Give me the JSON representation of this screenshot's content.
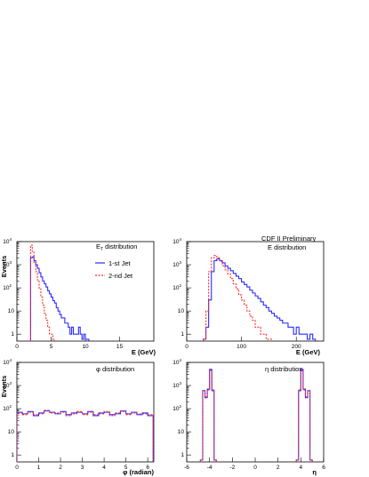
{
  "chart_data": [
    {
      "id": "et",
      "type": "line",
      "title": "E_T distribution",
      "title_main": "E",
      "title_sub": "T",
      "title_rest": " distribution",
      "xlabel": "E  (GeV)",
      "ylabel": "Events",
      "xlim": [
        0,
        20
      ],
      "ylim_log10": [
        -0.3,
        4
      ],
      "x_ticks": [
        0,
        5,
        10,
        15
      ],
      "log_y": true,
      "series": [
        {
          "name": "1-st Jet",
          "color": "#2a2aff",
          "dashed": false,
          "x": [
            2,
            2.25,
            2.5,
            2.75,
            3,
            3.25,
            3.5,
            3.75,
            4,
            4.25,
            4.5,
            4.75,
            5,
            5.25,
            5.5,
            5.75,
            6,
            6.25,
            6.5,
            6.75,
            7,
            7.25,
            7.5,
            7.75,
            8,
            8.25,
            8.5,
            8.75,
            9,
            9.25,
            9.5,
            9.75,
            10,
            10.25
          ],
          "y": [
            2000,
            2200,
            1500,
            1000,
            700,
            450,
            300,
            200,
            150,
            110,
            75,
            55,
            40,
            28,
            22,
            14,
            10,
            7,
            5,
            5,
            3,
            3,
            2,
            1,
            2,
            1,
            1,
            1,
            2,
            1,
            0.6,
            1,
            0.6,
            0.6
          ]
        },
        {
          "name": "2-nd Jet",
          "color": "#ff2a2a",
          "dashed": true,
          "x": [
            2,
            2.25,
            2.5,
            2.75,
            3,
            3.25,
            3.5,
            3.75,
            4,
            4.25,
            4.5,
            4.75,
            5,
            5.25
          ],
          "y": [
            7000,
            3500,
            1200,
            500,
            220,
            90,
            40,
            18,
            8,
            4,
            2,
            1,
            1,
            0.6
          ]
        }
      ]
    },
    {
      "id": "e",
      "type": "line",
      "title": "E distribution",
      "xlabel": "E (GeV)",
      "ylabel": "",
      "xlim": [
        0,
        250
      ],
      "ylim_log10": [
        -0.3,
        4
      ],
      "x_ticks": [
        0,
        100,
        200
      ],
      "log_y": true,
      "series": [
        {
          "name": "1-st Jet",
          "color": "#2a2aff",
          "dashed": false,
          "x": [
            30,
            35,
            40,
            45,
            50,
            55,
            60,
            65,
            70,
            75,
            80,
            85,
            90,
            95,
            100,
            105,
            110,
            115,
            120,
            125,
            130,
            135,
            140,
            145,
            150,
            155,
            160,
            165,
            170,
            175,
            180,
            185,
            190,
            195,
            200,
            205,
            210,
            215,
            220,
            225,
            230
          ],
          "y": [
            0.6,
            2,
            30,
            500,
            1500,
            1800,
            1500,
            1200,
            900,
            700,
            550,
            420,
            320,
            250,
            180,
            140,
            110,
            80,
            60,
            45,
            35,
            25,
            18,
            14,
            10,
            8,
            6,
            5,
            4,
            3,
            3,
            2,
            2,
            1,
            2,
            1,
            1,
            1,
            0.6,
            1,
            0.6
          ]
        },
        {
          "name": "2-nd Jet",
          "color": "#ff2a2a",
          "dashed": true,
          "x": [
            30,
            35,
            40,
            45,
            50,
            55,
            60,
            65,
            70,
            75,
            80,
            85,
            90,
            95,
            100,
            105,
            110,
            115,
            120,
            125,
            130,
            135,
            140,
            145,
            150
          ],
          "y": [
            0.6,
            10,
            500,
            2000,
            2500,
            2000,
            1400,
            900,
            600,
            400,
            250,
            150,
            90,
            50,
            30,
            18,
            10,
            6,
            4,
            2,
            2,
            1,
            1,
            0.6,
            0.6
          ]
        }
      ]
    },
    {
      "id": "phi",
      "type": "line",
      "title": "φ distribution",
      "xlabel": "φ (radian)",
      "ylabel": "Events",
      "xlim": [
        0,
        6.28
      ],
      "ylim_log10": [
        -0.3,
        4
      ],
      "x_ticks": [
        0,
        1,
        2,
        3,
        4,
        5,
        6
      ],
      "log_y": true,
      "series": [
        {
          "name": "1-st Jet",
          "color": "#2a2aff",
          "dashed": false,
          "x": [
            0,
            0.25,
            0.5,
            0.75,
            1,
            1.25,
            1.5,
            1.75,
            2,
            2.25,
            2.5,
            2.75,
            3,
            3.25,
            3.5,
            3.75,
            4,
            4.25,
            4.5,
            4.75,
            5,
            5.25,
            5.5,
            5.75,
            6
          ],
          "y": [
            70,
            60,
            75,
            50,
            65,
            80,
            70,
            60,
            75,
            55,
            65,
            70,
            60,
            75,
            50,
            65,
            70,
            55,
            60,
            80,
            60,
            70,
            55,
            65,
            50
          ]
        },
        {
          "name": "2-nd Jet",
          "color": "#ff2a2a",
          "dashed": true,
          "x": [
            0,
            0.25,
            0.5,
            0.75,
            1,
            1.25,
            1.5,
            1.75,
            2,
            2.25,
            2.5,
            2.75,
            3,
            3.25,
            3.5,
            3.75,
            4,
            4.25,
            4.5,
            4.75,
            5,
            5.25,
            5.5,
            5.75,
            6
          ],
          "y": [
            65,
            55,
            70,
            55,
            60,
            85,
            65,
            65,
            70,
            50,
            60,
            75,
            55,
            70,
            55,
            60,
            75,
            50,
            65,
            75,
            55,
            65,
            60,
            60,
            55
          ]
        }
      ]
    },
    {
      "id": "eta",
      "type": "line",
      "title": "η distribution",
      "xlabel": "η",
      "ylabel": "",
      "xlim": [
        -6,
        6
      ],
      "ylim_log10": [
        -0.3,
        4
      ],
      "x_ticks": [
        -6,
        -4,
        -2,
        0,
        2,
        4,
        6
      ],
      "log_y": true,
      "series": [
        {
          "name": "1-st Jet",
          "color": "#2a2aff",
          "dashed": false,
          "x": [
            -4.8,
            -4.6,
            -4.4,
            -4.2,
            -4.0,
            -3.8,
            -3.6,
            3.6,
            3.8,
            4.0,
            4.2,
            4.4,
            4.6,
            4.8
          ],
          "y": [
            0.6,
            600,
            300,
            700,
            5000,
            600,
            0.6,
            0.6,
            600,
            5000,
            700,
            300,
            600,
            0.6
          ]
        },
        {
          "name": "2-nd Jet",
          "color": "#ff2a2a",
          "dashed": true,
          "x": [
            -4.8,
            -4.6,
            -4.4,
            -4.2,
            -4.0,
            -3.8,
            -3.6,
            3.6,
            3.8,
            4.0,
            4.2,
            4.4,
            4.6,
            4.8
          ],
          "y": [
            0.6,
            550,
            320,
            650,
            4500,
            650,
            0.6,
            0.6,
            650,
            4500,
            650,
            320,
            550,
            0.6
          ]
        }
      ]
    }
  ],
  "annotation": "CDF II Preliminary",
  "legend": {
    "items": [
      {
        "label": "1-st Jet",
        "color": "#2a2aff",
        "dashed": false
      },
      {
        "label": "2-nd Jet",
        "color": "#ff2a2a",
        "dashed": true
      }
    ]
  },
  "y_tick_labels": [
    "1",
    "10",
    "10",
    "10",
    "10"
  ],
  "y_tick_exponents": [
    "",
    "",
    "2",
    "3",
    "4"
  ]
}
